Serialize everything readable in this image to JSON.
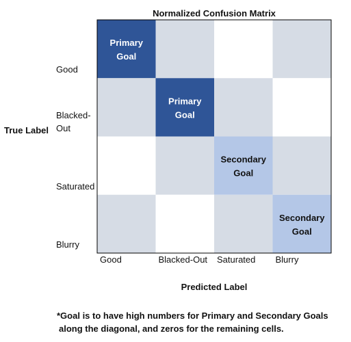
{
  "chart_data": {
    "type": "heatmap",
    "title": "Normalized Confusion Matrix",
    "xlabel": "Predicted Label",
    "ylabel": "True Label",
    "x_categories": [
      "Good",
      "Blacked-Out",
      "Saturated",
      "Blurry"
    ],
    "y_categories": [
      "Good",
      "Blacked-Out",
      "Saturated",
      "Blurry"
    ],
    "colors": {
      "primary": "#2f5597",
      "secondary": "#b4c7e7",
      "light": "#d6dce5",
      "empty": "#ffffff",
      "border": "#000000"
    },
    "cells": [
      [
        {
          "fill": "primary",
          "label": [
            "Primary",
            "Goal"
          ]
        },
        {
          "fill": "light",
          "label": []
        },
        {
          "fill": "empty",
          "label": []
        },
        {
          "fill": "light",
          "label": []
        }
      ],
      [
        {
          "fill": "light",
          "label": []
        },
        {
          "fill": "primary",
          "label": [
            "Primary",
            "Goal"
          ]
        },
        {
          "fill": "light",
          "label": []
        },
        {
          "fill": "empty",
          "label": []
        }
      ],
      [
        {
          "fill": "empty",
          "label": []
        },
        {
          "fill": "light",
          "label": []
        },
        {
          "fill": "secondary",
          "label": [
            "Secondary",
            "Goal"
          ]
        },
        {
          "fill": "light",
          "label": []
        }
      ],
      [
        {
          "fill": "light",
          "label": []
        },
        {
          "fill": "empty",
          "label": []
        },
        {
          "fill": "light",
          "label": []
        },
        {
          "fill": "secondary",
          "label": [
            "Secondary",
            "Goal"
          ]
        }
      ]
    ],
    "ytick_labels": [
      [
        "Good"
      ],
      [
        "Blacked-",
        "Out"
      ],
      [
        "Saturated"
      ],
      [
        "Blurry"
      ]
    ],
    "grid": false
  },
  "footnote": {
    "line1": "*Goal is to have high numbers for Primary and Secondary Goals",
    "line2": "along the diagonal, and zeros for the remaining cells."
  }
}
